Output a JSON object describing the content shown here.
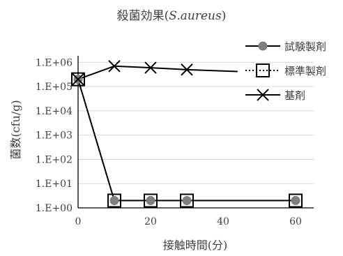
{
  "chart_data": {
    "type": "line",
    "title": {
      "main": "殺菌効果(",
      "italic": "S.aureus",
      "close": ")"
    },
    "xlabel": "接触時間(分)",
    "ylabel": "菌数(cfu/g)",
    "xlim": [
      0,
      65
    ],
    "xticks": [
      "0",
      "20",
      "40",
      "60"
    ],
    "xtick_values": [
      0,
      20,
      40,
      60
    ],
    "yscale": "log",
    "yticks": [
      "1.E+00",
      "1.E+01",
      "1.E+02",
      "1.E+03",
      "1.E+04",
      "1.E+05",
      "1.E+06"
    ],
    "ytick_exponents": [
      0,
      1,
      2,
      3,
      4,
      5,
      6
    ],
    "ylim_exponent": [
      0,
      6.5
    ],
    "grid": "horizontal",
    "legend_position": "right",
    "series": [
      {
        "name": "試験製剤",
        "style": "solid",
        "marker": "filled-circle",
        "color": "#7f7f7f",
        "x": [
          0,
          10,
          20,
          30,
          60
        ],
        "y": [
          200000,
          2,
          2,
          2,
          2
        ]
      },
      {
        "name": "標準製剤",
        "style": "dotted",
        "marker": "open-square",
        "color": "#000000",
        "x": [
          0,
          10,
          20,
          30,
          60
        ],
        "y": [
          200000,
          2,
          2,
          2,
          2
        ]
      },
      {
        "name": "基剤",
        "style": "solid",
        "marker": "x",
        "color": "#000000",
        "x": [
          0,
          10,
          20,
          30,
          44
        ],
        "y": [
          200000,
          700000,
          600000,
          500000,
          420000
        ]
      }
    ]
  }
}
